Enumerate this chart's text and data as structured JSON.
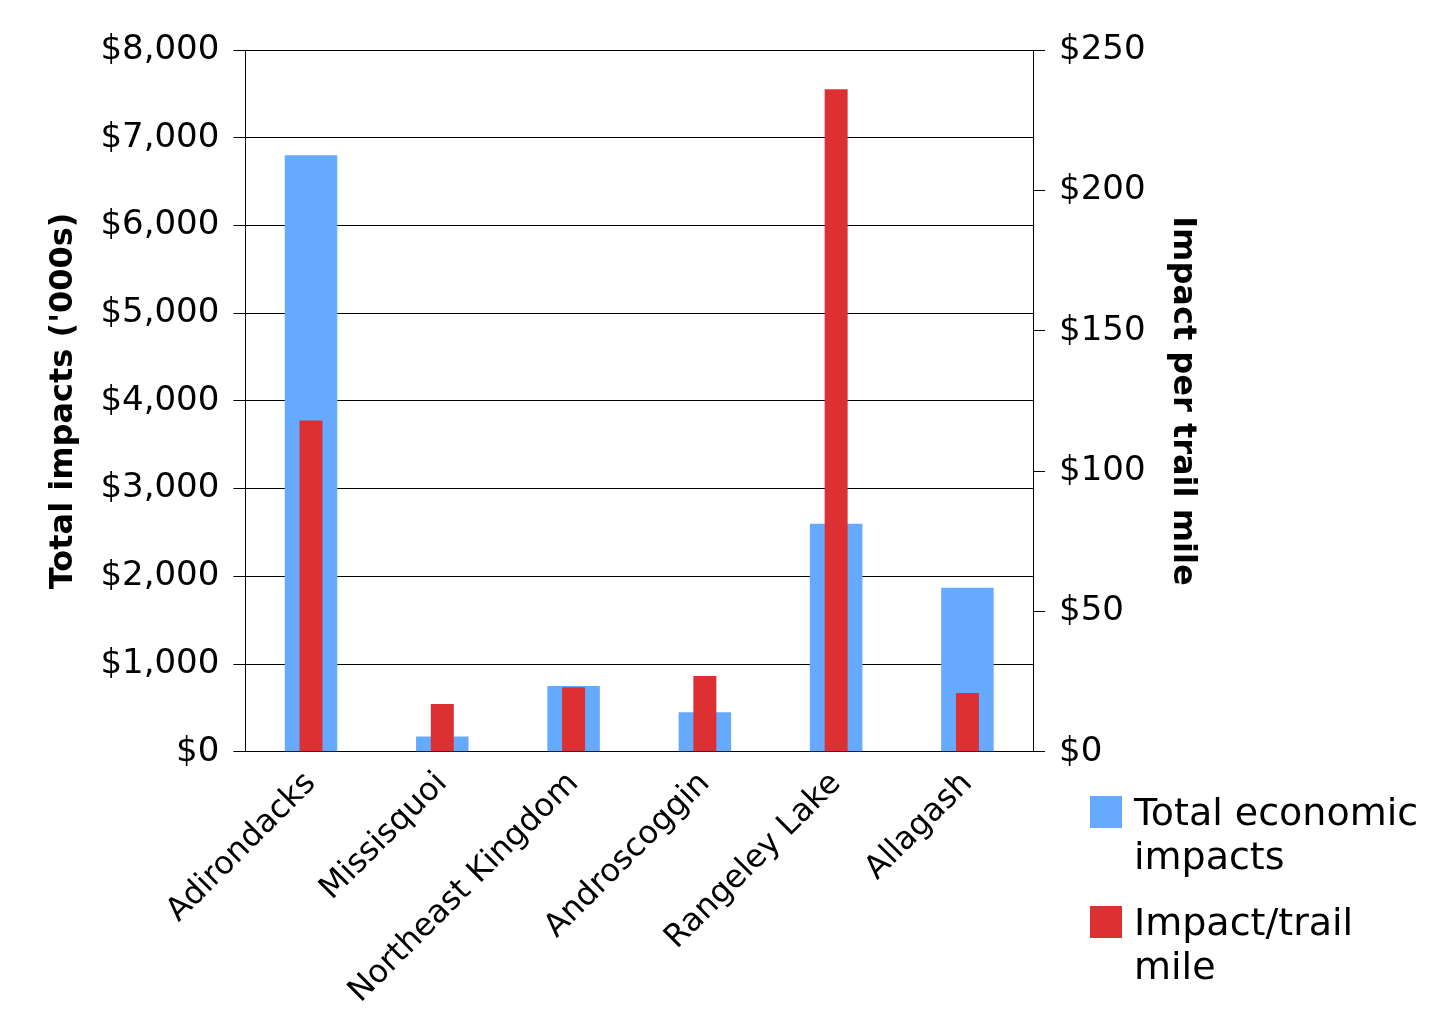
{
  "chart_data": {
    "type": "bar",
    "categories": [
      "Adirondacks",
      "Missisquoi",
      "Northeast Kingdom",
      "Androscoggin",
      "Rangeley Lake",
      "Allagash"
    ],
    "series": [
      {
        "name": "Total economic impacts",
        "color": "#66aaff",
        "values": [
          6800,
          175,
          750,
          450,
          2600,
          1870
        ]
      },
      {
        "name": "Impact/trail mile",
        "color": "#dd3033",
        "axis": "y2",
        "values": [
          118,
          17,
          23,
          27,
          236,
          21
        ]
      }
    ],
    "ylabel": "Total impacts ('000s)",
    "y2label": "Impact per trail mile",
    "ylim": [
      0,
      8000
    ],
    "yticks": [
      {
        "value": 0,
        "label": "$0"
      },
      {
        "value": 1000,
        "label": "$1,000"
      },
      {
        "value": 2000,
        "label": "$2,000"
      },
      {
        "value": 3000,
        "label": "$3,000"
      },
      {
        "value": 4000,
        "label": "$4,000"
      },
      {
        "value": 5000,
        "label": "$5,000"
      },
      {
        "value": 6000,
        "label": "$6,000"
      },
      {
        "value": 7000,
        "label": "$7,000"
      },
      {
        "value": 8000,
        "label": "$8,000"
      }
    ],
    "y2lim": [
      0,
      250
    ],
    "y2ticks": [
      {
        "value": 0,
        "label": "$0"
      },
      {
        "value": 50,
        "label": "$50"
      },
      {
        "value": 100,
        "label": "$100"
      },
      {
        "value": 150,
        "label": "$150"
      },
      {
        "value": 200,
        "label": "$200"
      },
      {
        "value": 250,
        "label": "$250"
      }
    ],
    "grid": "y",
    "legend": "bottom right"
  }
}
